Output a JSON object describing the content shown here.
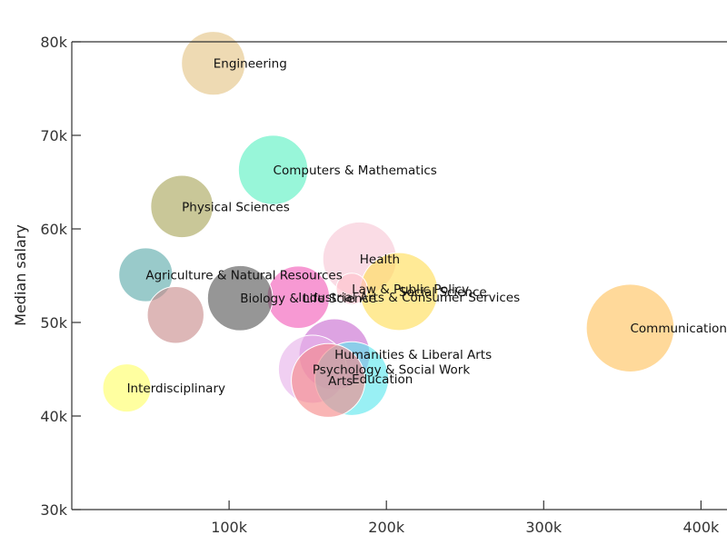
{
  "chart_data": {
    "type": "scatter",
    "ylabel": "Median salary",
    "xlabel": "",
    "xlim": [
      0,
      420000
    ],
    "ylim": [
      30000,
      80000
    ],
    "x_ticks": [
      {
        "value": 100000,
        "label": "100k"
      },
      {
        "value": 200000,
        "label": "200k"
      },
      {
        "value": 300000,
        "label": "300k"
      },
      {
        "value": 400000,
        "label": "400k"
      }
    ],
    "y_ticks": [
      {
        "value": 30000,
        "label": "30k"
      },
      {
        "value": 40000,
        "label": "40k"
      },
      {
        "value": 50000,
        "label": "50k"
      },
      {
        "value": 60000,
        "label": "60k"
      },
      {
        "value": 70000,
        "label": "70k"
      },
      {
        "value": 80000,
        "label": "80k"
      }
    ],
    "points": [
      {
        "label": "Engineering",
        "x": 90000,
        "y": 77700,
        "size": 45,
        "color": "#e3c384"
      },
      {
        "label": "Computers & Mathematics",
        "x": 128000,
        "y": 66300,
        "size": 49,
        "color": "#58f0c1"
      },
      {
        "label": "Physical Sciences",
        "x": 70000,
        "y": 62400,
        "size": 44,
        "color": "#a8a458"
      },
      {
        "label": "Health",
        "x": 183000,
        "y": 56800,
        "size": 52,
        "color": "#f7c6d5"
      },
      {
        "label": "Agriculture & Natural Resources",
        "x": 47000,
        "y": 55100,
        "size": 38,
        "color": "#5aa9a9"
      },
      {
        "label": "Social Science",
        "x": 208000,
        "y": 53300,
        "size": 55,
        "color": "#ffdd55"
      },
      {
        "label": "Law & Public Policy",
        "x": 178000,
        "y": 53600,
        "size": 22,
        "color": "#ffc0cb"
      },
      {
        "label": "Industrial Arts & Consumer Services",
        "x": 144000,
        "y": 52700,
        "size": 44,
        "color": "#f25ab8"
      },
      {
        "label": "Biology & Life Science",
        "x": 107000,
        "y": 52600,
        "size": 46,
        "color": "#555555"
      },
      {
        "label": "Communications & Journalism",
        "x": 355000,
        "y": 49400,
        "size": 62,
        "color": "#ffc25c"
      },
      {
        "label": "Humanities & Liberal Arts",
        "x": 167000,
        "y": 46600,
        "size": 50,
        "color": "#c86ad0"
      },
      {
        "label": "Psychology & Social Work",
        "x": 153000,
        "y": 45000,
        "size": 48,
        "color": "#e7b2ea"
      },
      {
        "label": "Education",
        "x": 178000,
        "y": 44000,
        "size": 52,
        "color": "#5ae6ee"
      },
      {
        "label": "Arts",
        "x": 163000,
        "y": 43800,
        "size": 52,
        "color": "#f58787"
      },
      {
        "label": "Interdisciplinary",
        "x": 35000,
        "y": 43000,
        "size": 34,
        "color": "#ffff66"
      },
      {
        "label": "",
        "x": 66000,
        "y": 50800,
        "size": 40,
        "color": "#c88a8a"
      }
    ]
  }
}
